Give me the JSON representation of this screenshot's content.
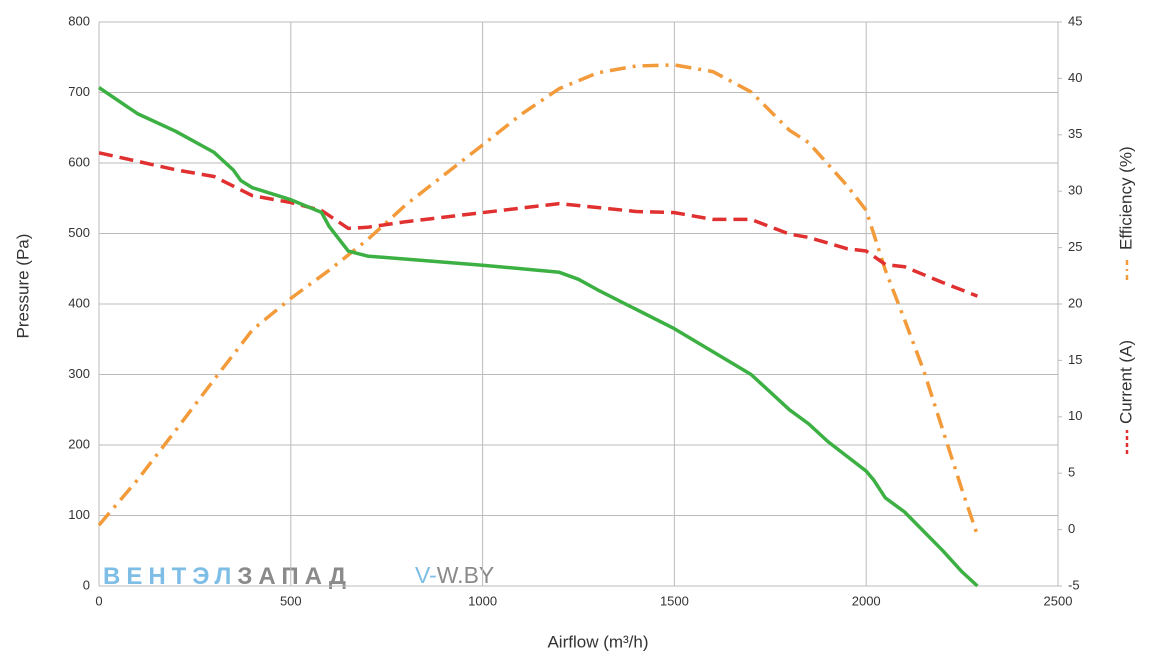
{
  "chart_data": {
    "type": "line",
    "xlabel": "Airflow (m³/h)",
    "ylabel": "Pressure (Pa)",
    "xlim": [
      0,
      2500
    ],
    "xticks": [
      0,
      500,
      1000,
      1500,
      2000,
      2500
    ],
    "ylim": [
      0,
      800
    ],
    "yticks": [
      0,
      100,
      200,
      300,
      400,
      500,
      600,
      700,
      800
    ],
    "y2lim": [
      -5,
      45
    ],
    "y2ticks": [
      -5,
      0,
      5,
      10,
      15,
      20,
      25,
      30,
      35,
      40,
      45
    ],
    "grid": true,
    "series": [
      {
        "color": "#3cb043",
        "dash": "solid",
        "x": [
          0,
          100,
          200,
          300,
          350,
          370,
          400,
          500,
          580,
          600,
          650,
          700,
          1000,
          1200,
          1250,
          1300,
          1500,
          1700,
          1800,
          1850,
          1900,
          2000,
          2020,
          2050,
          2100,
          2200,
          2250,
          2290
        ],
        "values": [
          707,
          670,
          645,
          615,
          590,
          575,
          565,
          548,
          530,
          510,
          475,
          468,
          455,
          445,
          435,
          420,
          365,
          300,
          250,
          230,
          205,
          163,
          150,
          125,
          105,
          50,
          20,
          0
        ]
      },
      {
        "name": "Efficiency (%)",
        "color": "#f39a3a",
        "dash": "dashdot",
        "axis": "y2",
        "x": [
          0,
          100,
          200,
          300,
          400,
          500,
          600,
          700,
          800,
          1000,
          1100,
          1200,
          1300,
          1400,
          1500,
          1600,
          1700,
          1800,
          1850,
          1950,
          2000,
          2050,
          2100,
          2150,
          2200,
          2250,
          2290
        ],
        "values": [
          0.4,
          4.4,
          8.8,
          13.3,
          17.7,
          20.5,
          23.0,
          25.7,
          28.8,
          34.1,
          36.8,
          39.1,
          40.5,
          41.1,
          41.2,
          40.6,
          38.8,
          35.4,
          34.3,
          30.5,
          28.3,
          23.0,
          18.6,
          14.1,
          8.8,
          3.5,
          -0.5
        ]
      },
      {
        "name": "Current (A)",
        "color": "#e03030",
        "dash": "dashed",
        "axis": "y2",
        "x": [
          0,
          200,
          300,
          400,
          500,
          580,
          650,
          700,
          800,
          1000,
          1200,
          1400,
          1500,
          1600,
          1700,
          1800,
          1850,
          1950,
          2000,
          2050,
          2100,
          2200,
          2290
        ],
        "values": [
          33.4,
          31.9,
          31.3,
          29.6,
          29.0,
          28.3,
          26.7,
          26.8,
          27.3,
          28.1,
          28.9,
          28.2,
          28.1,
          27.5,
          27.5,
          26.2,
          25.9,
          24.9,
          24.7,
          23.5,
          23.3,
          21.9,
          20.7
        ]
      }
    ],
    "watermark": [
      "ВЕНТЭЛ",
      "ЗАПАД",
      "V-",
      "W.BY"
    ]
  }
}
